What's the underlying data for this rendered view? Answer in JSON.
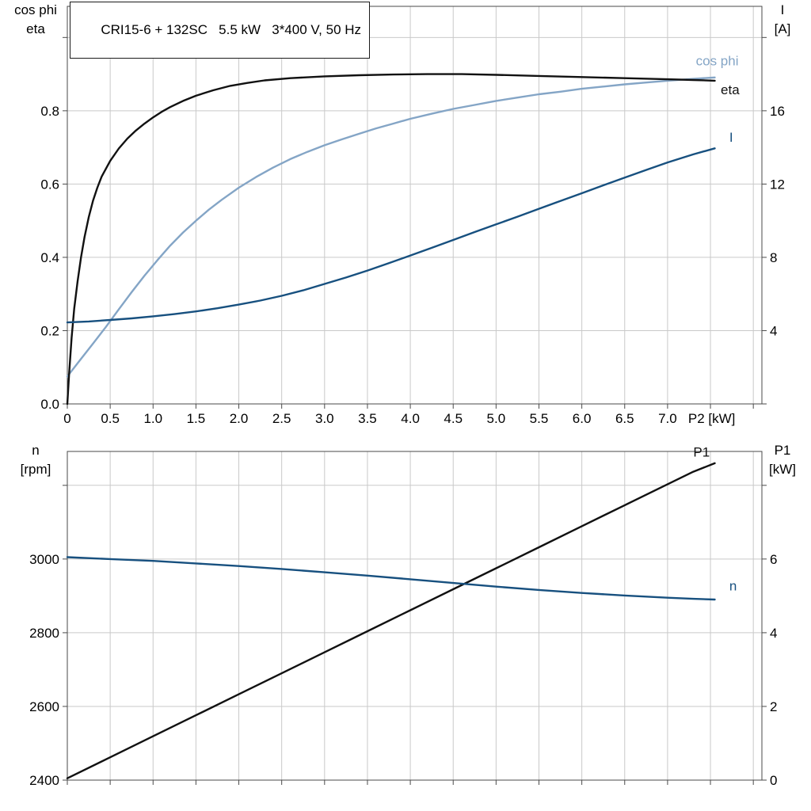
{
  "colors": {
    "grid": "#c9c9c9",
    "axis": "#4a4a4a",
    "text": "#000000",
    "black_curve": "#111111",
    "light_blue": "#84a5c6",
    "dark_blue": "#17507f",
    "background": "#ffffff"
  },
  "chart_data": [
    {
      "type": "line",
      "name": "motor-performance-top",
      "title": "CRI15-6 + 132SC   5.5 kW   3*400 V, 50 Hz",
      "x_axis": {
        "label": "P2 [kW]",
        "min": 0,
        "max": 8.1,
        "ticks": [
          0,
          0.5,
          1,
          1.5,
          2,
          2.5,
          3,
          3.5,
          4,
          4.5,
          5,
          5.5,
          6,
          6.5,
          7,
          7.5,
          8
        ],
        "tick_labels": [
          "0",
          "0.5",
          "1.0",
          "1.5",
          "2.0",
          "2.5",
          "3.0",
          "3.5",
          "4.0",
          "4.5",
          "5.0",
          "5.5",
          "6.0",
          "6.5",
          "7.0",
          "",
          ""
        ]
      },
      "y_left": {
        "corner_label_lines": [
          "cos phi",
          "eta"
        ],
        "min": 0,
        "max": 1.085,
        "ticks": [
          0,
          0.2,
          0.4,
          0.6,
          0.8,
          1.0
        ],
        "tick_labels": [
          "0.0",
          "0.2",
          "0.4",
          "0.6",
          "0.8",
          ""
        ]
      },
      "y_right": {
        "corner_label_lines": [
          "I",
          "[A]"
        ],
        "min": 0,
        "max": 21.7,
        "ticks": [
          0,
          4,
          8,
          12,
          16,
          20
        ],
        "tick_labels": [
          "",
          "4",
          "8",
          "12",
          "16",
          ""
        ]
      },
      "series": [
        {
          "id": "cos-phi",
          "name": "cos phi",
          "axis": "left",
          "color": "#84a5c6",
          "label": {
            "text": "cos phi",
            "x": 7.33,
            "y": 0.924,
            "anchor": "start"
          },
          "points": [
            [
              0,
              0.075
            ],
            [
              0.15,
              0.12
            ],
            [
              0.3,
              0.165
            ],
            [
              0.45,
              0.21
            ],
            [
              0.6,
              0.258
            ],
            [
              0.75,
              0.305
            ],
            [
              0.9,
              0.35
            ],
            [
              1.05,
              0.392
            ],
            [
              1.2,
              0.432
            ],
            [
              1.35,
              0.468
            ],
            [
              1.5,
              0.5
            ],
            [
              1.65,
              0.53
            ],
            [
              1.8,
              0.557
            ],
            [
              2,
              0.59
            ],
            [
              2.2,
              0.619
            ],
            [
              2.4,
              0.645
            ],
            [
              2.6,
              0.668
            ],
            [
              2.8,
              0.688
            ],
            [
              3,
              0.706
            ],
            [
              3.2,
              0.722
            ],
            [
              3.4,
              0.737
            ],
            [
              3.6,
              0.752
            ],
            [
              3.8,
              0.765
            ],
            [
              4,
              0.778
            ],
            [
              4.25,
              0.792
            ],
            [
              4.5,
              0.805
            ],
            [
              4.75,
              0.816
            ],
            [
              5,
              0.827
            ],
            [
              5.25,
              0.836
            ],
            [
              5.5,
              0.845
            ],
            [
              5.75,
              0.852
            ],
            [
              6,
              0.86
            ],
            [
              6.25,
              0.866
            ],
            [
              6.5,
              0.872
            ],
            [
              6.75,
              0.877
            ],
            [
              7,
              0.882
            ],
            [
              7.3,
              0.887
            ],
            [
              7.55,
              0.891
            ]
          ]
        },
        {
          "id": "eta",
          "name": "eta",
          "axis": "left",
          "color": "#111111",
          "label": {
            "text": "eta",
            "x": 7.62,
            "y": 0.845,
            "anchor": "start"
          },
          "points": [
            [
              0,
              0
            ],
            [
              0.02,
              0.08
            ],
            [
              0.05,
              0.18
            ],
            [
              0.08,
              0.26
            ],
            [
              0.12,
              0.335
            ],
            [
              0.16,
              0.4
            ],
            [
              0.2,
              0.455
            ],
            [
              0.25,
              0.51
            ],
            [
              0.3,
              0.555
            ],
            [
              0.35,
              0.59
            ],
            [
              0.4,
              0.62
            ],
            [
              0.5,
              0.663
            ],
            [
              0.6,
              0.697
            ],
            [
              0.7,
              0.724
            ],
            [
              0.8,
              0.746
            ],
            [
              0.9,
              0.765
            ],
            [
              1,
              0.782
            ],
            [
              1.1,
              0.797
            ],
            [
              1.2,
              0.81
            ],
            [
              1.35,
              0.827
            ],
            [
              1.5,
              0.841
            ],
            [
              1.7,
              0.856
            ],
            [
              1.9,
              0.868
            ],
            [
              2.1,
              0.876
            ],
            [
              2.3,
              0.883
            ],
            [
              2.6,
              0.889
            ],
            [
              3,
              0.894
            ],
            [
              3.4,
              0.897
            ],
            [
              3.8,
              0.899
            ],
            [
              4.2,
              0.9
            ],
            [
              4.6,
              0.9
            ],
            [
              5,
              0.898
            ],
            [
              5.5,
              0.895
            ],
            [
              6,
              0.892
            ],
            [
              6.5,
              0.889
            ],
            [
              7,
              0.886
            ],
            [
              7.3,
              0.884
            ],
            [
              7.55,
              0.882
            ]
          ]
        },
        {
          "id": "i",
          "name": "I",
          "axis": "right",
          "color": "#17507f",
          "label": {
            "text": "I",
            "x": 7.72,
            "y": 14.3,
            "anchor": "start"
          },
          "points": [
            [
              0,
              4.45
            ],
            [
              0.25,
              4.5
            ],
            [
              0.5,
              4.58
            ],
            [
              0.75,
              4.67
            ],
            [
              1,
              4.78
            ],
            [
              1.25,
              4.9
            ],
            [
              1.5,
              5.05
            ],
            [
              1.75,
              5.22
            ],
            [
              2,
              5.42
            ],
            [
              2.25,
              5.64
            ],
            [
              2.5,
              5.9
            ],
            [
              2.75,
              6.2
            ],
            [
              3,
              6.55
            ],
            [
              3.25,
              6.9
            ],
            [
              3.5,
              7.28
            ],
            [
              3.75,
              7.68
            ],
            [
              4,
              8.1
            ],
            [
              4.25,
              8.52
            ],
            [
              4.5,
              8.95
            ],
            [
              4.75,
              9.38
            ],
            [
              5,
              9.8
            ],
            [
              5.25,
              10.22
            ],
            [
              5.5,
              10.65
            ],
            [
              5.75,
              11.08
            ],
            [
              6,
              11.5
            ],
            [
              6.25,
              11.93
            ],
            [
              6.5,
              12.35
            ],
            [
              6.75,
              12.77
            ],
            [
              7,
              13.18
            ],
            [
              7.3,
              13.62
            ],
            [
              7.55,
              13.95
            ]
          ]
        }
      ]
    },
    {
      "type": "line",
      "name": "motor-performance-bottom",
      "title": "",
      "x_axis": {
        "label": "",
        "min": 0,
        "max": 8.1,
        "ticks": [
          0,
          0.5,
          1,
          1.5,
          2,
          2.5,
          3,
          3.5,
          4,
          4.5,
          5,
          5.5,
          6,
          6.5,
          7,
          7.5,
          8
        ],
        "tick_labels": [
          "",
          "",
          "",
          "",
          "",
          "",
          "",
          "",
          "",
          "",
          "",
          "",
          "",
          "",
          "",
          "",
          ""
        ]
      },
      "y_left": {
        "corner_label_lines": [
          "n",
          "[rpm]"
        ],
        "min": 2400,
        "max": 3292,
        "ticks": [
          2400,
          2600,
          2800,
          3000,
          3200
        ],
        "tick_labels": [
          "2400",
          "2600",
          "2800",
          "3000",
          ""
        ]
      },
      "y_right": {
        "corner_label_lines": [
          "P1",
          "[kW]"
        ],
        "min": 0,
        "max": 8.92,
        "ticks": [
          0,
          2,
          4,
          6,
          8
        ],
        "tick_labels": [
          "0",
          "2",
          "4",
          "6",
          ""
        ]
      },
      "series": [
        {
          "id": "p1",
          "name": "P1",
          "axis": "right",
          "color": "#111111",
          "label": {
            "text": "P1",
            "x": 7.3,
            "y": 8.78,
            "anchor": "start"
          },
          "points": [
            [
              0,
              0.05
            ],
            [
              0.5,
              0.62
            ],
            [
              1,
              1.19
            ],
            [
              1.5,
              1.76
            ],
            [
              2,
              2.33
            ],
            [
              2.5,
              2.9
            ],
            [
              3,
              3.47
            ],
            [
              3.5,
              4.04
            ],
            [
              4,
              4.61
            ],
            [
              4.5,
              5.18
            ],
            [
              5,
              5.75
            ],
            [
              5.5,
              6.32
            ],
            [
              6,
              6.89
            ],
            [
              6.5,
              7.46
            ],
            [
              7,
              8.03
            ],
            [
              7.3,
              8.37
            ],
            [
              7.55,
              8.6
            ]
          ]
        },
        {
          "id": "n",
          "name": "n",
          "axis": "left",
          "color": "#17507f",
          "label": {
            "text": "n",
            "x": 7.72,
            "y": 2915,
            "anchor": "start"
          },
          "points": [
            [
              0,
              3005
            ],
            [
              0.5,
              3000
            ],
            [
              1,
              2995
            ],
            [
              1.5,
              2988
            ],
            [
              2,
              2981
            ],
            [
              2.5,
              2973
            ],
            [
              3,
              2964
            ],
            [
              3.5,
              2955
            ],
            [
              4,
              2945
            ],
            [
              4.5,
              2935
            ],
            [
              5,
              2925
            ],
            [
              5.5,
              2916
            ],
            [
              6,
              2908
            ],
            [
              6.5,
              2901
            ],
            [
              7,
              2895
            ],
            [
              7.3,
              2892
            ],
            [
              7.55,
              2890
            ]
          ]
        }
      ]
    }
  ]
}
